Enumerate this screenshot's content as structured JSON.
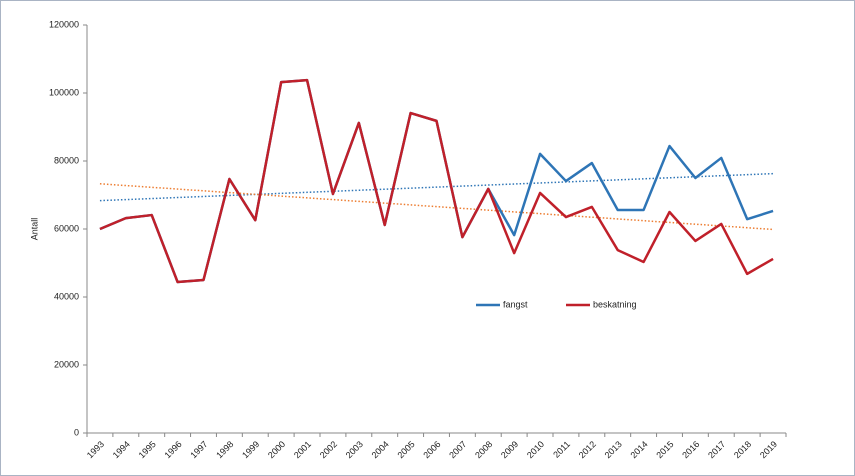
{
  "chart_data": {
    "type": "line",
    "y_label": "Antall",
    "categories": [
      "1993",
      "1994",
      "1995",
      "1996",
      "1997",
      "1998",
      "1999",
      "2000",
      "2001",
      "2002",
      "2003",
      "2004",
      "2005",
      "2006",
      "2007",
      "2008",
      "2009",
      "2010",
      "2011",
      "2012",
      "2013",
      "2014",
      "2015",
      "2016",
      "2017",
      "2018",
      "2019"
    ],
    "series": [
      {
        "name": "fangst",
        "color": "#2e75b6",
        "trend_color": "#2e75b6",
        "values": [
          60000,
          63200,
          64100,
          44400,
          45000,
          74700,
          62600,
          103200,
          103800,
          70300,
          91200,
          61200,
          94100,
          91800,
          57600,
          71800,
          58200,
          82100,
          74100,
          79400,
          65600,
          65600,
          84400,
          75000,
          80900,
          62900,
          65300
        ]
      },
      {
        "name": "beskatning",
        "color": "#c0202a",
        "trend_color": "#ed7d31",
        "values": [
          60000,
          63200,
          64100,
          44400,
          45000,
          74700,
          62600,
          103200,
          103800,
          70300,
          91200,
          61200,
          94100,
          91800,
          57600,
          71800,
          52900,
          70600,
          63500,
          66500,
          53800,
          50300,
          65000,
          56500,
          61500,
          46800,
          51200
        ]
      }
    ],
    "ylim": [
      0,
      120000
    ],
    "yticks": [
      0,
      20000,
      40000,
      60000,
      80000,
      100000,
      120000
    ],
    "trendline": true,
    "grid": false
  }
}
